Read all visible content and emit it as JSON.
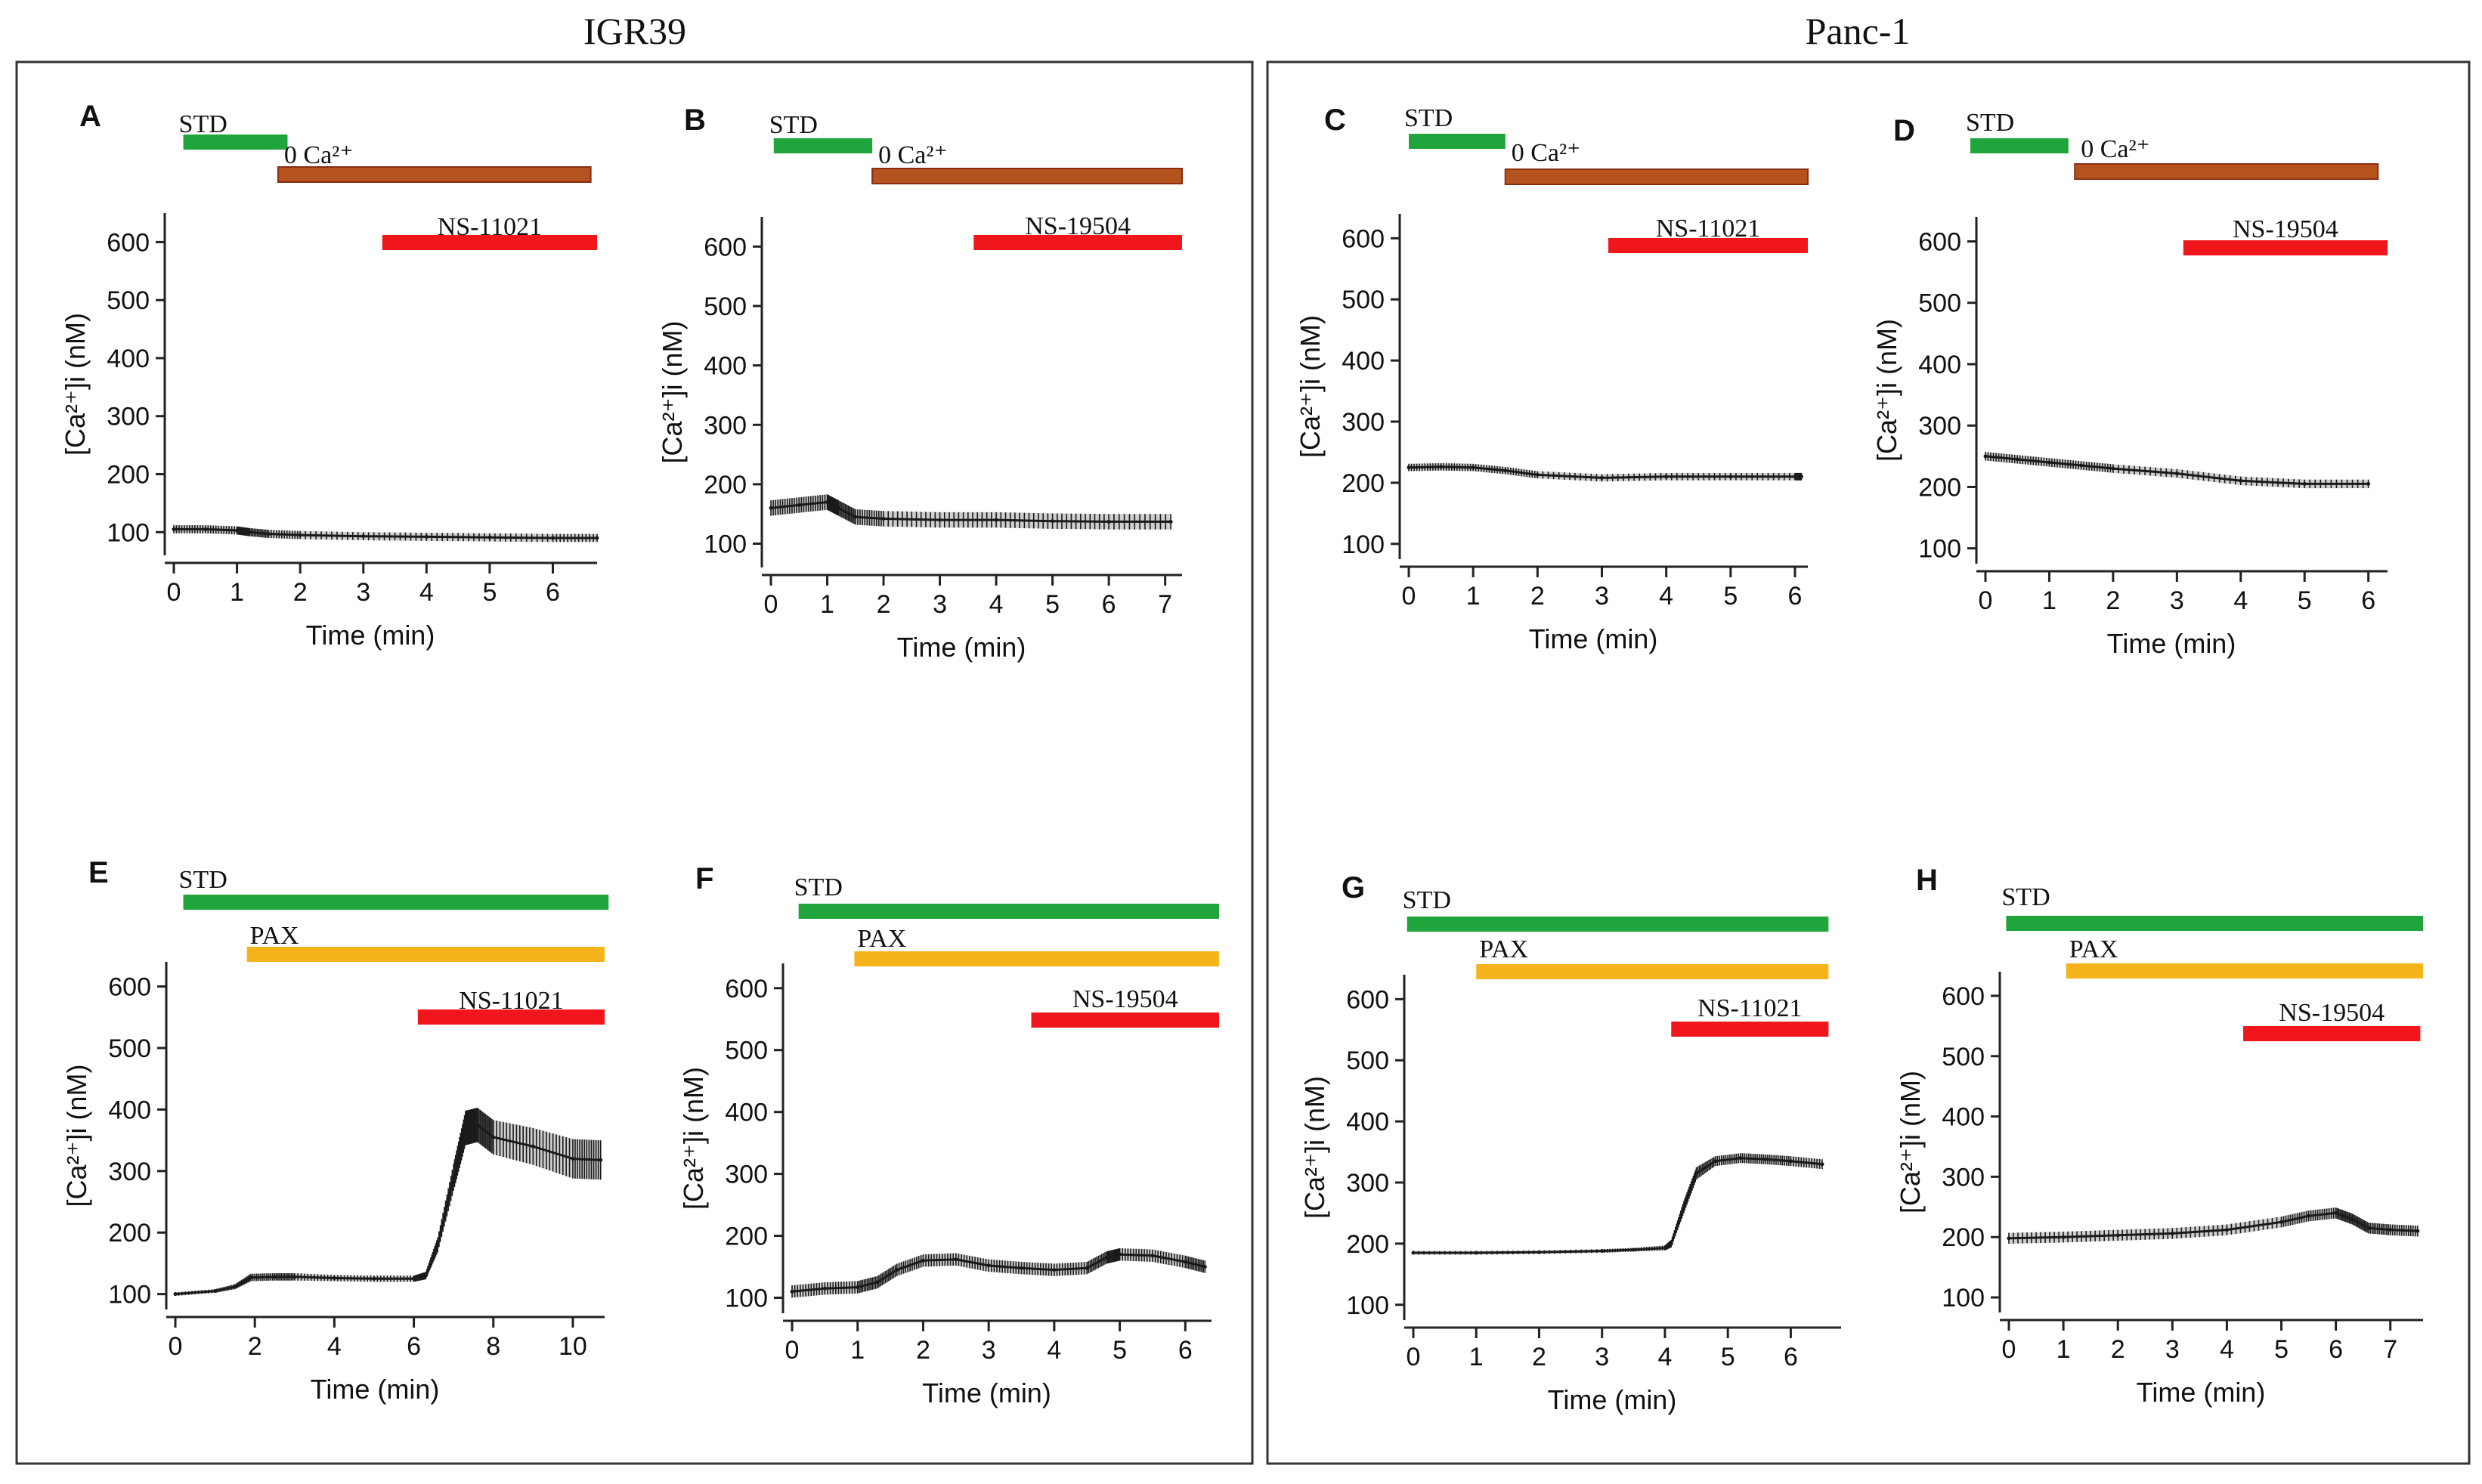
{
  "groups": [
    {
      "id": "igr39",
      "title": "IGR39"
    },
    {
      "id": "panc1",
      "title": "Panc-1"
    }
  ],
  "colors": {
    "std": "#1fa53b",
    "zero_ca": "#b5531f",
    "zero_ca_border": "#8a2e12",
    "drug": "#f0161c",
    "pax": "#f6b41c",
    "trace": "#1a1a1a",
    "frame": "#333333"
  },
  "chart_data": [
    {
      "type": "line",
      "panel": "A",
      "group": "IGR39",
      "xlabel": "Time (min)",
      "ylabel": "[Ca²⁺]i (nM)",
      "xlim": [
        0,
        6.7
      ],
      "xticks": [
        0,
        1,
        2,
        3,
        4,
        5,
        6
      ],
      "ylim": [
        60,
        650
      ],
      "yticks": [
        100,
        200,
        300,
        400,
        500,
        600
      ],
      "bars": [
        {
          "label": "STD",
          "color": "std",
          "start": 0.15,
          "end": 1.8
        },
        {
          "label": "0 Ca²⁺",
          "color": "zero_ca",
          "start": 1.65,
          "end": 6.6
        },
        {
          "label": "NS-11021",
          "color": "drug",
          "start": 3.3,
          "end": 6.7
        }
      ],
      "series": {
        "x": [
          0,
          0.5,
          1,
          1.2,
          1.5,
          2,
          3,
          4,
          5,
          6,
          6.7
        ],
        "y": [
          105,
          105,
          103,
          100,
          97,
          95,
          93,
          92,
          91,
          90,
          90
        ],
        "err": 7
      }
    },
    {
      "type": "line",
      "panel": "B",
      "group": "IGR39",
      "xlabel": "Time (min)",
      "ylabel": "[Ca²⁺]i (nM)",
      "xlim": [
        0,
        7.3
      ],
      "xticks": [
        0,
        1,
        2,
        3,
        4,
        5,
        6,
        7
      ],
      "ylim": [
        60,
        650
      ],
      "yticks": [
        100,
        200,
        300,
        400,
        500,
        600
      ],
      "bars": [
        {
          "label": "STD",
          "color": "std",
          "start": 0.05,
          "end": 1.8
        },
        {
          "label": "0 Ca²⁺",
          "color": "zero_ca",
          "start": 1.8,
          "end": 7.3
        },
        {
          "label": "NS-19504",
          "color": "drug",
          "start": 3.6,
          "end": 7.3
        }
      ],
      "series": {
        "x": [
          0,
          0.5,
          1,
          1.2,
          1.5,
          2,
          3,
          4,
          5,
          6,
          7.1
        ],
        "y": [
          160,
          165,
          170,
          160,
          145,
          142,
          140,
          140,
          138,
          137,
          137
        ],
        "err": 13
      }
    },
    {
      "type": "line",
      "panel": "C",
      "group": "Panc-1",
      "xlabel": "Time (min)",
      "ylabel": "[Ca²⁺]i (nM)",
      "xlim": [
        0,
        6.2
      ],
      "xticks": [
        0,
        1,
        2,
        3,
        4,
        5,
        6
      ],
      "ylim": [
        75,
        640
      ],
      "yticks": [
        100,
        200,
        300,
        400,
        500,
        600
      ],
      "bars": [
        {
          "label": "STD",
          "color": "std",
          "start": 0,
          "end": 1.5
        },
        {
          "label": "0 Ca²⁺",
          "color": "zero_ca",
          "start": 1.5,
          "end": 6.2
        },
        {
          "label": "NS-11021",
          "color": "drug",
          "start": 3.1,
          "end": 6.2
        }
      ],
      "series": {
        "x": [
          0,
          0.5,
          1,
          1.5,
          2,
          3,
          4,
          5,
          6,
          6.1
        ],
        "y": [
          225,
          226,
          225,
          220,
          213,
          208,
          210,
          210,
          210,
          210
        ],
        "err": 6
      }
    },
    {
      "type": "line",
      "panel": "D",
      "group": "Panc-1",
      "xlabel": "Time (min)",
      "ylabel": "[Ca²⁺]i (nM)",
      "xlim": [
        0,
        6.3
      ],
      "xticks": [
        0,
        1,
        2,
        3,
        4,
        5,
        6
      ],
      "ylim": [
        75,
        640
      ],
      "yticks": [
        100,
        200,
        300,
        400,
        500,
        600
      ],
      "bars": [
        {
          "label": "STD",
          "color": "std",
          "start": -0.25,
          "end": 1.3
        },
        {
          "label": "0 Ca²⁺",
          "color": "zero_ca",
          "start": 1.4,
          "end": 6.15
        },
        {
          "label": "NS-19504",
          "color": "drug",
          "start": 3.1,
          "end": 6.3
        }
      ],
      "series": {
        "x": [
          0,
          0.5,
          1,
          1.5,
          2,
          3,
          4,
          5,
          6
        ],
        "y": [
          250,
          245,
          240,
          235,
          230,
          222,
          210,
          205,
          205
        ],
        "err": 7
      }
    },
    {
      "type": "line",
      "panel": "E",
      "group": "IGR39",
      "xlabel": "Time (min)",
      "ylabel": "[Ca²⁺]i (nM)",
      "xlim": [
        0,
        10.8
      ],
      "xticks": [
        0,
        2,
        4,
        6,
        8,
        10
      ],
      "ylim": [
        75,
        640
      ],
      "yticks": [
        100,
        200,
        300,
        400,
        500,
        600
      ],
      "bars": [
        {
          "label": "STD",
          "color": "std",
          "start": 0.2,
          "end": 10.9
        },
        {
          "label": "PAX",
          "color": "pax",
          "start": 1.8,
          "end": 10.8
        },
        {
          "label": "NS-11021",
          "color": "drug",
          "start": 6.1,
          "end": 10.8
        }
      ],
      "series": {
        "x": [
          0,
          1,
          1.5,
          1.9,
          2.5,
          3,
          4,
          5,
          6,
          6.3,
          6.6,
          7,
          7.3,
          7.6,
          8,
          9,
          10,
          10.7
        ],
        "y": [
          100,
          105,
          112,
          127,
          128,
          128,
          126,
          125,
          125,
          130,
          180,
          290,
          370,
          375,
          355,
          340,
          320,
          318
        ],
        "err": [
          3,
          3,
          4,
          6,
          6,
          6,
          5,
          5,
          5,
          6,
          12,
          22,
          28,
          28,
          28,
          30,
          32,
          32
        ]
      }
    },
    {
      "type": "line",
      "panel": "F",
      "group": "IGR39",
      "xlabel": "Time (min)",
      "ylabel": "[Ca²⁺]i (nM)",
      "xlim": [
        0,
        6.4
      ],
      "xticks": [
        0,
        1,
        2,
        3,
        4,
        5,
        6
      ],
      "ylim": [
        75,
        640
      ],
      "yticks": [
        100,
        200,
        300,
        400,
        500,
        600
      ],
      "bars": [
        {
          "label": "STD",
          "color": "std",
          "start": 0.1,
          "end": 6.6
        },
        {
          "label": "PAX",
          "color": "pax",
          "start": 0.95,
          "end": 6.6
        },
        {
          "label": "NS-19504",
          "color": "drug",
          "start": 3.65,
          "end": 6.6
        }
      ],
      "series": {
        "x": [
          0,
          0.5,
          1,
          1.3,
          1.6,
          2,
          2.5,
          3,
          3.5,
          4,
          4.5,
          4.8,
          5,
          5.5,
          6,
          6.3
        ],
        "y": [
          110,
          115,
          117,
          125,
          145,
          160,
          162,
          152,
          148,
          145,
          148,
          165,
          170,
          168,
          158,
          150
        ],
        "err": 10
      }
    },
    {
      "type": "line",
      "panel": "G",
      "group": "Panc-1",
      "xlabel": "Time (min)",
      "ylabel": "[Ca²⁺]i (nM)",
      "xlim": [
        0,
        6.8
      ],
      "xticks": [
        0,
        1,
        2,
        3,
        4,
        5,
        6
      ],
      "ylim": [
        75,
        640
      ],
      "yticks": [
        100,
        200,
        300,
        400,
        500,
        600
      ],
      "bars": [
        {
          "label": "STD",
          "color": "std",
          "start": -0.1,
          "end": 6.6
        },
        {
          "label": "PAX",
          "color": "pax",
          "start": 1.0,
          "end": 6.6
        },
        {
          "label": "NS-11021",
          "color": "drug",
          "start": 4.1,
          "end": 6.6
        }
      ],
      "series": {
        "x": [
          0,
          1,
          2,
          3,
          3.5,
          4,
          4.1,
          4.3,
          4.5,
          4.8,
          5.2,
          5.6,
          6,
          6.5
        ],
        "y": [
          185,
          185,
          186,
          188,
          190,
          193,
          200,
          260,
          315,
          335,
          340,
          338,
          335,
          330
        ],
        "err": [
          3,
          3,
          3,
          3,
          3,
          4,
          6,
          10,
          10,
          8,
          8,
          8,
          8,
          8
        ]
      }
    },
    {
      "type": "line",
      "panel": "H",
      "group": "Panc-1",
      "xlabel": "Time (min)",
      "ylabel": "[Ca²⁺]i (nM)",
      "xlim": [
        0,
        7.6
      ],
      "xticks": [
        0,
        1,
        2,
        3,
        4,
        5,
        6,
        7
      ],
      "ylim": [
        75,
        640
      ],
      "yticks": [
        100,
        200,
        300,
        400,
        500,
        600
      ],
      "bars": [
        {
          "label": "STD",
          "color": "std",
          "start": -0.05,
          "end": 7.6
        },
        {
          "label": "PAX",
          "color": "pax",
          "start": 1.05,
          "end": 7.6
        },
        {
          "label": "NS-19504",
          "color": "drug",
          "start": 4.3,
          "end": 7.55
        }
      ],
      "series": {
        "x": [
          0,
          1,
          2,
          3,
          4,
          5,
          5.5,
          6,
          6.3,
          6.6,
          7,
          7.5
        ],
        "y": [
          198,
          200,
          203,
          206,
          212,
          225,
          235,
          240,
          230,
          215,
          212,
          210
        ],
        "err": 9
      }
    }
  ]
}
